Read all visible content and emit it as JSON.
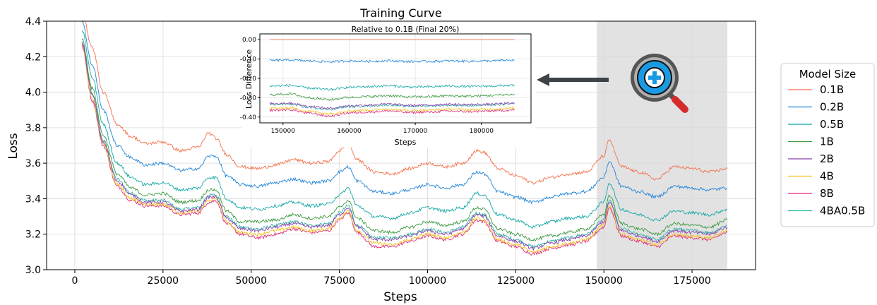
{
  "chart_data": [
    {
      "type": "line",
      "title": "Training Curve",
      "xlabel": "Steps",
      "ylabel": "Loss",
      "xlim": [
        -8000,
        193000
      ],
      "ylim": [
        3.0,
        4.4
      ],
      "x_ticks": [
        0,
        25000,
        50000,
        75000,
        100000,
        125000,
        150000,
        175000
      ],
      "y_ticks": [
        3.0,
        3.2,
        3.4,
        3.6,
        3.8,
        4.0,
        4.2,
        4.4
      ],
      "grid": true,
      "highlight_region": [
        148000,
        185000
      ],
      "x": [
        2000,
        5000,
        8000,
        12000,
        16000,
        20000,
        25000,
        30000,
        35000,
        38000,
        40000,
        43000,
        47000,
        52000,
        57000,
        62000,
        67000,
        72000,
        75000,
        77500,
        80000,
        85000,
        90000,
        95000,
        100000,
        105000,
        110000,
        114000,
        116000,
        120000,
        125000,
        130000,
        135000,
        140000,
        145000,
        150000,
        151500,
        155000,
        160000,
        165000,
        170000,
        175000,
        180000,
        185000
      ],
      "series": [
        {
          "name": "0.1B",
          "color": "#f4704a",
          "values": [
            4.45,
            4.25,
            4.0,
            3.82,
            3.75,
            3.71,
            3.72,
            3.67,
            3.69,
            3.77,
            3.74,
            3.65,
            3.58,
            3.57,
            3.59,
            3.62,
            3.6,
            3.61,
            3.67,
            3.71,
            3.62,
            3.55,
            3.54,
            3.57,
            3.6,
            3.58,
            3.6,
            3.67,
            3.66,
            3.57,
            3.53,
            3.49,
            3.52,
            3.54,
            3.55,
            3.64,
            3.73,
            3.58,
            3.55,
            3.51,
            3.58,
            3.57,
            3.55,
            3.57
          ]
        },
        {
          "name": "0.2B",
          "color": "#1f84d8",
          "values": [
            4.4,
            4.15,
            3.9,
            3.7,
            3.63,
            3.59,
            3.6,
            3.56,
            3.57,
            3.64,
            3.64,
            3.53,
            3.48,
            3.47,
            3.49,
            3.51,
            3.49,
            3.5,
            3.55,
            3.58,
            3.5,
            3.44,
            3.43,
            3.45,
            3.48,
            3.46,
            3.48,
            3.55,
            3.54,
            3.44,
            3.41,
            3.38,
            3.41,
            3.43,
            3.44,
            3.52,
            3.61,
            3.47,
            3.44,
            3.41,
            3.47,
            3.46,
            3.45,
            3.46
          ]
        },
        {
          "name": "0.5B",
          "color": "#14a8a8",
          "values": [
            4.35,
            4.08,
            3.82,
            3.6,
            3.52,
            3.48,
            3.49,
            3.45,
            3.46,
            3.52,
            3.52,
            3.4,
            3.35,
            3.34,
            3.36,
            3.38,
            3.36,
            3.37,
            3.42,
            3.46,
            3.36,
            3.3,
            3.29,
            3.32,
            3.35,
            3.33,
            3.35,
            3.43,
            3.42,
            3.31,
            3.28,
            3.24,
            3.27,
            3.29,
            3.3,
            3.38,
            3.49,
            3.34,
            3.31,
            3.28,
            3.33,
            3.32,
            3.31,
            3.34
          ]
        },
        {
          "name": "1B",
          "color": "#3a9a3e",
          "values": [
            4.3,
            4.02,
            3.76,
            3.54,
            3.46,
            3.42,
            3.43,
            3.38,
            3.39,
            3.45,
            3.45,
            3.33,
            3.27,
            3.27,
            3.28,
            3.31,
            3.29,
            3.3,
            3.35,
            3.39,
            3.29,
            3.22,
            3.21,
            3.24,
            3.27,
            3.25,
            3.27,
            3.35,
            3.34,
            3.23,
            3.2,
            3.17,
            3.19,
            3.21,
            3.23,
            3.31,
            3.42,
            3.26,
            3.23,
            3.2,
            3.26,
            3.25,
            3.24,
            3.28
          ]
        },
        {
          "name": "2B",
          "color": "#8e3fb0",
          "values": [
            4.28,
            3.98,
            3.72,
            3.5,
            3.42,
            3.38,
            3.38,
            3.33,
            3.34,
            3.41,
            3.41,
            3.29,
            3.23,
            3.22,
            3.24,
            3.26,
            3.24,
            3.25,
            3.31,
            3.35,
            3.24,
            3.17,
            3.17,
            3.19,
            3.22,
            3.2,
            3.23,
            3.31,
            3.3,
            3.19,
            3.16,
            3.12,
            3.15,
            3.17,
            3.19,
            3.27,
            3.38,
            3.22,
            3.19,
            3.16,
            3.22,
            3.21,
            3.2,
            3.24
          ]
        },
        {
          "name": "4B",
          "color": "#f5c21b",
          "values": [
            4.27,
            3.96,
            3.71,
            3.48,
            3.4,
            3.37,
            3.37,
            3.32,
            3.33,
            3.39,
            3.4,
            3.27,
            3.21,
            3.2,
            3.22,
            3.24,
            3.22,
            3.23,
            3.29,
            3.33,
            3.22,
            3.15,
            3.14,
            3.17,
            3.2,
            3.18,
            3.21,
            3.29,
            3.28,
            3.17,
            3.14,
            3.1,
            3.13,
            3.15,
            3.17,
            3.25,
            3.36,
            3.2,
            3.17,
            3.14,
            3.2,
            3.19,
            3.18,
            3.22
          ]
        },
        {
          "name": "8B",
          "color": "#e0297a",
          "values": [
            4.26,
            3.95,
            3.7,
            3.47,
            3.39,
            3.36,
            3.36,
            3.31,
            3.32,
            3.38,
            3.39,
            3.26,
            3.2,
            3.18,
            3.2,
            3.23,
            3.21,
            3.22,
            3.28,
            3.32,
            3.21,
            3.13,
            3.13,
            3.16,
            3.19,
            3.17,
            3.2,
            3.28,
            3.27,
            3.16,
            3.13,
            3.09,
            3.12,
            3.14,
            3.16,
            3.24,
            3.35,
            3.19,
            3.16,
            3.13,
            3.19,
            3.18,
            3.17,
            3.21
          ]
        },
        {
          "name": "4BA0.5B",
          "color": "#2bb5a0",
          "values": [
            4.28,
            3.99,
            3.73,
            3.51,
            3.43,
            3.39,
            3.39,
            3.34,
            3.35,
            3.42,
            3.42,
            3.3,
            3.24,
            3.23,
            3.25,
            3.27,
            3.25,
            3.26,
            3.32,
            3.36,
            3.25,
            3.18,
            3.18,
            3.2,
            3.23,
            3.21,
            3.24,
            3.32,
            3.31,
            3.2,
            3.17,
            3.13,
            3.16,
            3.18,
            3.2,
            3.28,
            3.39,
            3.23,
            3.2,
            3.17,
            3.23,
            3.22,
            3.21,
            3.25
          ]
        }
      ],
      "legend": {
        "title": "Model Size",
        "placement": "right"
      }
    },
    {
      "type": "line",
      "title": "Relative to 0.1B (Final 20%)",
      "xlabel": "Steps",
      "ylabel": "Loss Difference",
      "xlim": [
        146500,
        187500
      ],
      "ylim": [
        -0.43,
        0.03
      ],
      "x_ticks": [
        150000,
        160000,
        170000,
        180000
      ],
      "x_tick_labels": [
        "150000",
        "160000",
        "170000",
        "180000"
      ],
      "y_ticks": [
        0.0,
        -0.1,
        -0.2,
        -0.3,
        -0.4
      ],
      "y_tick_labels": [
        "0.00",
        "-0.10",
        "-0.20",
        "-0.30",
        "-0.40"
      ],
      "grid": true,
      "x": [
        148000,
        151000,
        154000,
        157000,
        160000,
        163000,
        166000,
        169000,
        172000,
        175000,
        178000,
        181000,
        184000,
        185000
      ],
      "series": [
        {
          "name": "0.1B",
          "color": "#f4704a",
          "values": [
            0.0,
            0.0,
            0.0,
            0.0,
            0.0,
            0.0,
            0.0,
            0.0,
            0.0,
            0.0,
            0.0,
            0.0,
            0.0,
            0.0
          ]
        },
        {
          "name": "0.2B",
          "color": "#1f84d8",
          "values": [
            -0.108,
            -0.105,
            -0.11,
            -0.114,
            -0.11,
            -0.112,
            -0.109,
            -0.113,
            -0.112,
            -0.11,
            -0.111,
            -0.11,
            -0.107,
            -0.106
          ]
        },
        {
          "name": "0.5B",
          "color": "#14a8a8",
          "values": [
            -0.24,
            -0.236,
            -0.25,
            -0.258,
            -0.246,
            -0.243,
            -0.238,
            -0.245,
            -0.244,
            -0.239,
            -0.242,
            -0.24,
            -0.237,
            -0.235
          ]
        },
        {
          "name": "1B",
          "color": "#3a9a3e",
          "values": [
            -0.285,
            -0.28,
            -0.3,
            -0.31,
            -0.298,
            -0.294,
            -0.289,
            -0.296,
            -0.294,
            -0.29,
            -0.292,
            -0.289,
            -0.284,
            -0.283
          ]
        },
        {
          "name": "2B",
          "color": "#8e3fb0",
          "values": [
            -0.33,
            -0.328,
            -0.345,
            -0.355,
            -0.342,
            -0.338,
            -0.333,
            -0.34,
            -0.338,
            -0.334,
            -0.336,
            -0.334,
            -0.33,
            -0.328
          ]
        },
        {
          "name": "4B",
          "color": "#f5c21b",
          "values": [
            -0.355,
            -0.352,
            -0.37,
            -0.382,
            -0.368,
            -0.364,
            -0.358,
            -0.366,
            -0.364,
            -0.359,
            -0.362,
            -0.359,
            -0.355,
            -0.353
          ]
        },
        {
          "name": "8B",
          "color": "#e0297a",
          "values": [
            -0.365,
            -0.362,
            -0.38,
            -0.395,
            -0.378,
            -0.374,
            -0.368,
            -0.376,
            -0.374,
            -0.369,
            -0.372,
            -0.369,
            -0.365,
            -0.362
          ]
        },
        {
          "name": "4BA0.5B",
          "color": "#2bb5a0",
          "values": [
            -0.335,
            -0.332,
            -0.35,
            -0.36,
            -0.346,
            -0.342,
            -0.337,
            -0.344,
            -0.342,
            -0.338,
            -0.34,
            -0.338,
            -0.334,
            -0.332
          ]
        }
      ]
    }
  ],
  "icons": {
    "zoom": "magnifier-plus-icon",
    "arrow": "left-arrow-icon"
  },
  "colors": {
    "highlight": "#e2e2e2",
    "arrow": "#3e4249",
    "magnifier_lens": "#1b9ae4",
    "magnifier_handle": "#d62b2b"
  }
}
